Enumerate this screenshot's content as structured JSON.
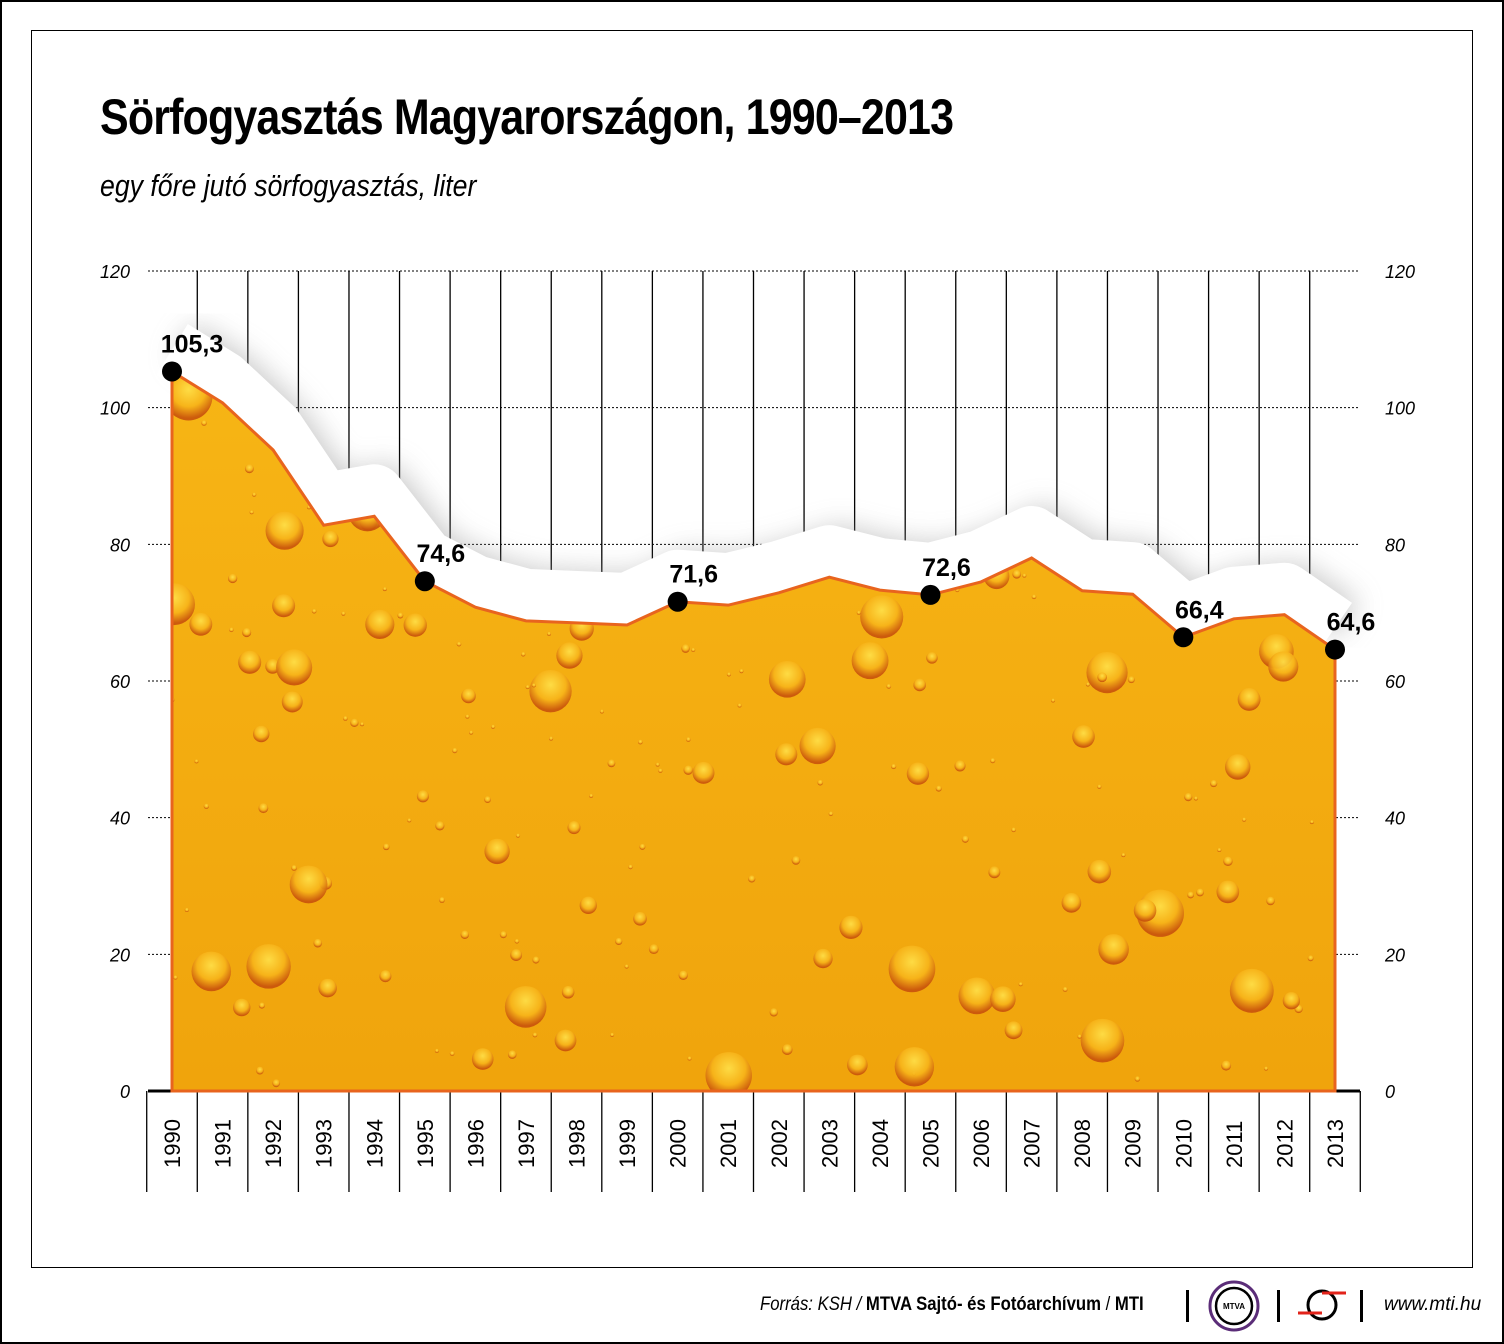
{
  "chart_data": {
    "type": "area",
    "title": "Sörfogyasztás Magyarországon, 1990–2013",
    "subtitle": "egy főre jutó sörfogyasztás, liter",
    "x": [
      "1990",
      "1991",
      "1992",
      "1993",
      "1994",
      "1995",
      "1996",
      "1997",
      "1998",
      "1999",
      "2000",
      "2001",
      "2002",
      "2003",
      "2004",
      "2005",
      "2006",
      "2007",
      "2008",
      "2009",
      "2010",
      "2011",
      "2012",
      "2013"
    ],
    "values": [
      105.3,
      100.7,
      93.8,
      82.8,
      84.1,
      74.6,
      70.8,
      68.8,
      68.5,
      68.2,
      71.6,
      71.1,
      72.9,
      75.2,
      73.3,
      72.6,
      74.5,
      78.0,
      73.2,
      72.7,
      66.4,
      69.1,
      69.7,
      64.6
    ],
    "data_labels": [
      {
        "year": "1990",
        "label": "105,3"
      },
      {
        "year": "1995",
        "label": "74,6"
      },
      {
        "year": "2000",
        "label": "71,6"
      },
      {
        "year": "2005",
        "label": "72,6"
      },
      {
        "year": "2010",
        "label": "66,4"
      },
      {
        "year": "2013",
        "label": "64,6"
      }
    ],
    "ylim": [
      0,
      120
    ],
    "yticks": [
      "0",
      "20",
      "40",
      "60",
      "80",
      "100",
      "120"
    ],
    "grid": true,
    "axes": "left and right",
    "colors": {
      "fill": "#f5b512",
      "line": "#e8641e",
      "marker": "#000000"
    }
  },
  "footer": {
    "source_prefix": "Forrás: KSH / ",
    "source_bold": "MTVA Sajtó- és Fotóarchívum",
    "source_sep": " / ",
    "source_mti": "MTI",
    "mtva_logo": "MTVA",
    "website": "www.mti.hu"
  }
}
